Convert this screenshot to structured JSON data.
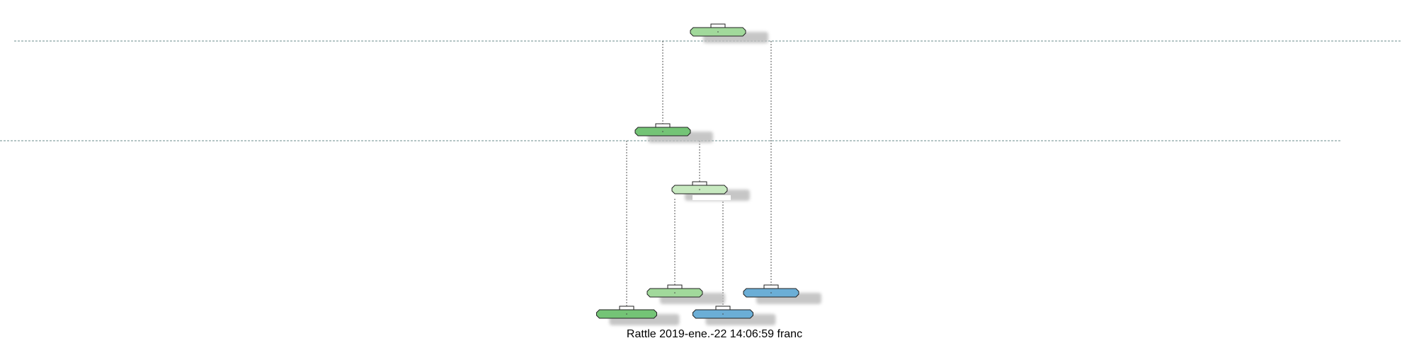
{
  "caption": "Rattle 2019-ene.-22 14:06:59 franc",
  "colors": {
    "node_green_light": "#c7e9c0",
    "node_green_mid": "#a1d99b",
    "node_green_dark": "#74c476",
    "node_blue": "#6baed6",
    "shadow": "#bdbdbd",
    "edge": "#555555",
    "guide": "#6b8e8e"
  },
  "nodes": [
    {
      "id": "n1",
      "kind": "split",
      "fill": "node_green_mid"
    },
    {
      "id": "n2",
      "kind": "split",
      "fill": "node_green_dark"
    },
    {
      "id": "n3",
      "kind": "split",
      "fill": "node_green_light"
    },
    {
      "id": "n4",
      "kind": "leaf",
      "fill": "node_green_mid"
    },
    {
      "id": "n5",
      "kind": "leaf",
      "fill": "node_blue"
    },
    {
      "id": "n6",
      "kind": "leaf",
      "fill": "node_green_dark"
    },
    {
      "id": "n7",
      "kind": "leaf",
      "fill": "node_blue"
    }
  ],
  "edges": [
    [
      "n1",
      "n2"
    ],
    [
      "n1",
      "n5"
    ],
    [
      "n2",
      "n6"
    ],
    [
      "n2",
      "n3"
    ],
    [
      "n3",
      "n4"
    ],
    [
      "n3",
      "n7"
    ]
  ]
}
